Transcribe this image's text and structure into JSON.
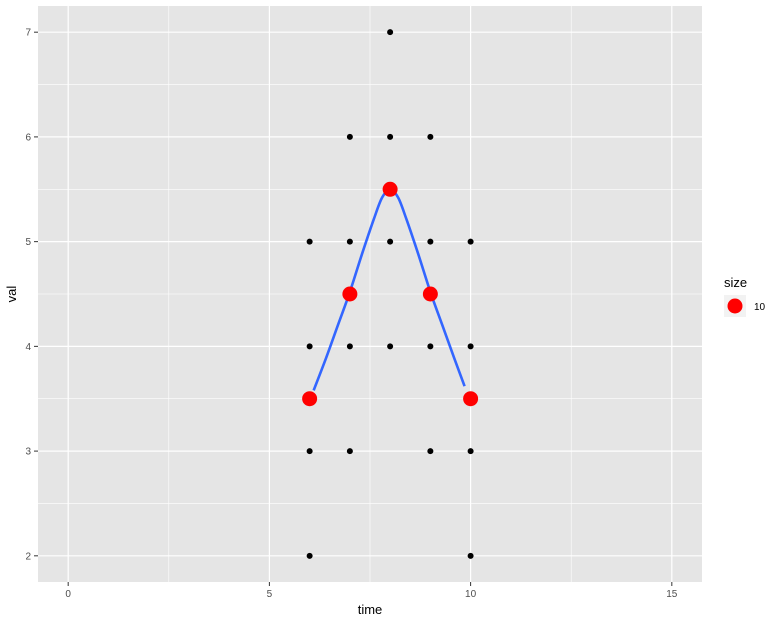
{
  "chart_data": {
    "type": "scatter",
    "xlabel": "time",
    "ylabel": "val",
    "xlim": [
      -0.75,
      15.75
    ],
    "ylim": [
      1.75,
      7.25
    ],
    "x_ticks": [
      0,
      5,
      10,
      15
    ],
    "y_ticks": [
      2,
      3,
      4,
      5,
      6,
      7
    ],
    "x_tick_labels": [
      "0",
      "5",
      "10",
      "15"
    ],
    "y_tick_labels": [
      "2",
      "3",
      "4",
      "5",
      "6",
      "7"
    ],
    "grid": true,
    "background": "#e5e5e5",
    "grid_color": "#ffffff",
    "points": [
      {
        "x": 6,
        "y": 2
      },
      {
        "x": 6,
        "y": 3
      },
      {
        "x": 6,
        "y": 4
      },
      {
        "x": 6,
        "y": 5
      },
      {
        "x": 7,
        "y": 3
      },
      {
        "x": 7,
        "y": 4
      },
      {
        "x": 7,
        "y": 5
      },
      {
        "x": 7,
        "y": 6
      },
      {
        "x": 8,
        "y": 4
      },
      {
        "x": 8,
        "y": 5
      },
      {
        "x": 8,
        "y": 6
      },
      {
        "x": 8,
        "y": 7
      },
      {
        "x": 9,
        "y": 3
      },
      {
        "x": 9,
        "y": 4
      },
      {
        "x": 9,
        "y": 5
      },
      {
        "x": 9,
        "y": 6
      },
      {
        "x": 10,
        "y": 2
      },
      {
        "x": 10,
        "y": 3
      },
      {
        "x": 10,
        "y": 4
      },
      {
        "x": 10,
        "y": 5
      }
    ],
    "point_color": "#000000",
    "mean_points": [
      {
        "x": 6,
        "y": 3.5
      },
      {
        "x": 7,
        "y": 4.5
      },
      {
        "x": 8,
        "y": 5.5
      },
      {
        "x": 9,
        "y": 4.5
      },
      {
        "x": 10,
        "y": 3.5
      }
    ],
    "mean_point_color": "#ff0000",
    "smooth_line": [
      {
        "x": 6.1,
        "y": 3.58
      },
      {
        "x": 6.4,
        "y": 3.88
      },
      {
        "x": 6.7,
        "y": 4.2
      },
      {
        "x": 7.0,
        "y": 4.52
      },
      {
        "x": 7.3,
        "y": 4.88
      },
      {
        "x": 7.6,
        "y": 5.22
      },
      {
        "x": 7.8,
        "y": 5.42
      },
      {
        "x": 8.0,
        "y": 5.5
      },
      {
        "x": 8.2,
        "y": 5.42
      },
      {
        "x": 8.4,
        "y": 5.22
      },
      {
        "x": 8.7,
        "y": 4.88
      },
      {
        "x": 9.0,
        "y": 4.52
      },
      {
        "x": 9.3,
        "y": 4.2
      },
      {
        "x": 9.6,
        "y": 3.88
      },
      {
        "x": 9.85,
        "y": 3.62
      }
    ],
    "smooth_color": "#3366ff",
    "legend": {
      "title": "size",
      "label": "10",
      "position": "right",
      "color": "#ff0000"
    }
  }
}
